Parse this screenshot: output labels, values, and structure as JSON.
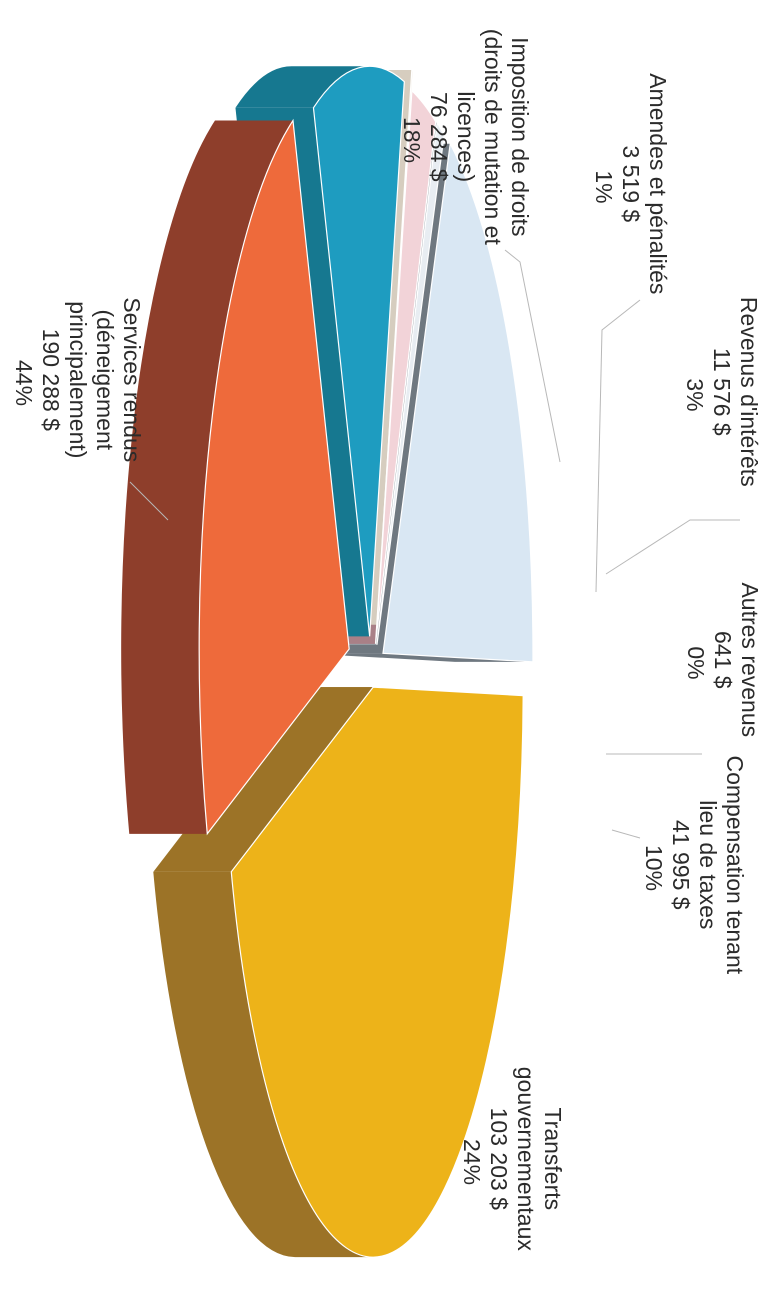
{
  "chart_data": {
    "type": "pie",
    "style": "3d-exploded",
    "currency_suffix": "$",
    "slices": [
      {
        "key": "compensation",
        "label_lines": [
          "Compensation tenant",
          "lieu de taxes"
        ],
        "value": 41995,
        "value_text": "41 995  $",
        "percent_text": "10%",
        "color": "#1E9CC0",
        "side_color": "#167890"
      },
      {
        "key": "autres",
        "label_lines": [
          "Autres revenus"
        ],
        "value": 641,
        "value_text": "641  $",
        "percent_text": "0%",
        "color": "#F3ECE2",
        "side_color": "#D6CDBF"
      },
      {
        "key": "interets",
        "label_lines": [
          "Revenus d'intérêts"
        ],
        "value": 11576,
        "value_text": "11 576  $",
        "percent_text": "3%",
        "color": "#F2D3D8",
        "side_color": "#A98087"
      },
      {
        "key": "amendes",
        "label_lines": [
          "Amendes et pénalités"
        ],
        "value": 3519,
        "value_text": "3 519  $",
        "percent_text": "1%",
        "color": "#E8EDF2",
        "side_color": "#9AA1A8"
      },
      {
        "key": "imposition",
        "label_lines": [
          "Imposition de droits",
          "(droits de mutation et",
          "licences)"
        ],
        "value": 76284,
        "value_text": "76 284  $",
        "percent_text": "18%",
        "color": "#D9E7F3",
        "side_color": "#6F7880"
      },
      {
        "key": "services",
        "label_lines": [
          "Services rendus",
          "(déneigement",
          "principalement)"
        ],
        "value": 190288,
        "value_text": "190 288  $",
        "percent_text": "44%",
        "color": "#EDB319",
        "side_color": "#9C7327"
      },
      {
        "key": "transferts",
        "label_lines": [
          "Transferts",
          "gouvernementaux"
        ],
        "value": 103203,
        "value_text": "103 203  $",
        "percent_text": "24%",
        "color": "#EE6A3B",
        "side_color": "#8E3E2B"
      }
    ]
  }
}
